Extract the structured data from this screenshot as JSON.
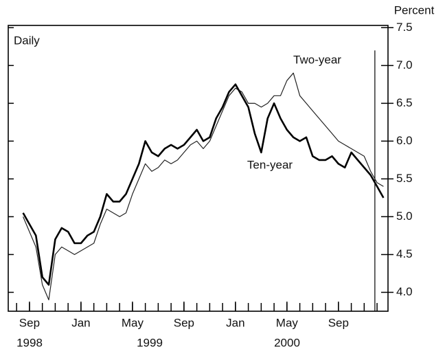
{
  "chart_data": {
    "type": "line",
    "frequency_label": "Daily",
    "y_axis_label": "Percent",
    "x": [
      -0.5,
      0,
      0.5,
      1,
      1.5,
      2,
      2.5,
      3,
      3.5,
      4,
      4.5,
      5,
      5.5,
      6,
      6.5,
      7,
      7.5,
      8,
      8.5,
      9,
      9.5,
      10,
      10.5,
      11,
      11.5,
      12,
      12.5,
      13,
      13.5,
      14,
      14.5,
      15,
      15.5,
      16,
      16.5,
      17,
      17.5,
      18,
      18.5,
      19,
      19.5,
      20,
      20.5,
      21,
      21.5,
      22,
      22.5,
      23,
      23.5,
      24,
      24.5,
      25,
      25.5,
      26,
      26.5,
      27,
      27.5
    ],
    "series": [
      {
        "name": "Two-year",
        "color": "#222222",
        "width": 1.2,
        "values": [
          5.0,
          4.8,
          4.6,
          4.1,
          3.9,
          4.5,
          4.6,
          4.55,
          4.5,
          4.55,
          4.6,
          4.65,
          4.9,
          5.1,
          5.05,
          5.0,
          5.05,
          5.3,
          5.5,
          5.7,
          5.6,
          5.65,
          5.75,
          5.7,
          5.75,
          5.85,
          5.95,
          6.0,
          5.9,
          6.0,
          6.2,
          6.4,
          6.6,
          6.7,
          6.65,
          6.5,
          6.5,
          6.45,
          6.5,
          6.6,
          6.6,
          6.8,
          6.9,
          6.6,
          6.5,
          6.4,
          6.3,
          6.2,
          6.1,
          6.0,
          5.95,
          5.9,
          5.85,
          5.8,
          5.6,
          5.45,
          5.4
        ]
      },
      {
        "name": "Ten-year",
        "color": "#000000",
        "width": 2.6,
        "values": [
          5.05,
          4.9,
          4.75,
          4.2,
          4.1,
          4.7,
          4.85,
          4.8,
          4.65,
          4.65,
          4.75,
          4.8,
          5.0,
          5.3,
          5.2,
          5.2,
          5.3,
          5.5,
          5.7,
          6.0,
          5.85,
          5.8,
          5.9,
          5.95,
          5.9,
          5.95,
          6.05,
          6.15,
          6.0,
          6.05,
          6.3,
          6.45,
          6.65,
          6.75,
          6.6,
          6.45,
          6.1,
          5.85,
          6.3,
          6.5,
          6.3,
          6.15,
          6.05,
          6.0,
          6.05,
          5.8,
          5.75,
          5.75,
          5.8,
          5.7,
          5.65,
          5.85,
          5.75,
          5.65,
          5.55,
          5.4,
          5.25
        ]
      }
    ],
    "vertical_line_x": 26.83,
    "xlim": [
      -1.65,
      27.85
    ],
    "xticks": [
      {
        "value": 0,
        "label": "Sep"
      },
      {
        "value": 4,
        "label": "Jan"
      },
      {
        "value": 8,
        "label": "May"
      },
      {
        "value": 12,
        "label": "Sep"
      },
      {
        "value": 16,
        "label": "Jan"
      },
      {
        "value": 20,
        "label": "May"
      },
      {
        "value": 24,
        "label": "Sep"
      }
    ],
    "xminorticks": [
      -1,
      0,
      1,
      2,
      3,
      4,
      5,
      6,
      7,
      8,
      9,
      10,
      11,
      12,
      13,
      14,
      15,
      16,
      17,
      18,
      19,
      20,
      21,
      22,
      23,
      24,
      25,
      26,
      27
    ],
    "years": [
      "1998",
      "1999",
      "2000"
    ],
    "ylim": [
      3.75,
      7.53
    ],
    "yticks": [
      {
        "value": 4.0,
        "label": "4.0"
      },
      {
        "value": 4.5,
        "label": "4.5"
      },
      {
        "value": 5.0,
        "label": "5.0"
      },
      {
        "value": 5.5,
        "label": "5.5"
      },
      {
        "value": 6.0,
        "label": "6.0"
      },
      {
        "value": 6.5,
        "label": "6.5"
      },
      {
        "value": 7.0,
        "label": "7.0"
      },
      {
        "value": 7.5,
        "label": "7.5"
      }
    ]
  }
}
